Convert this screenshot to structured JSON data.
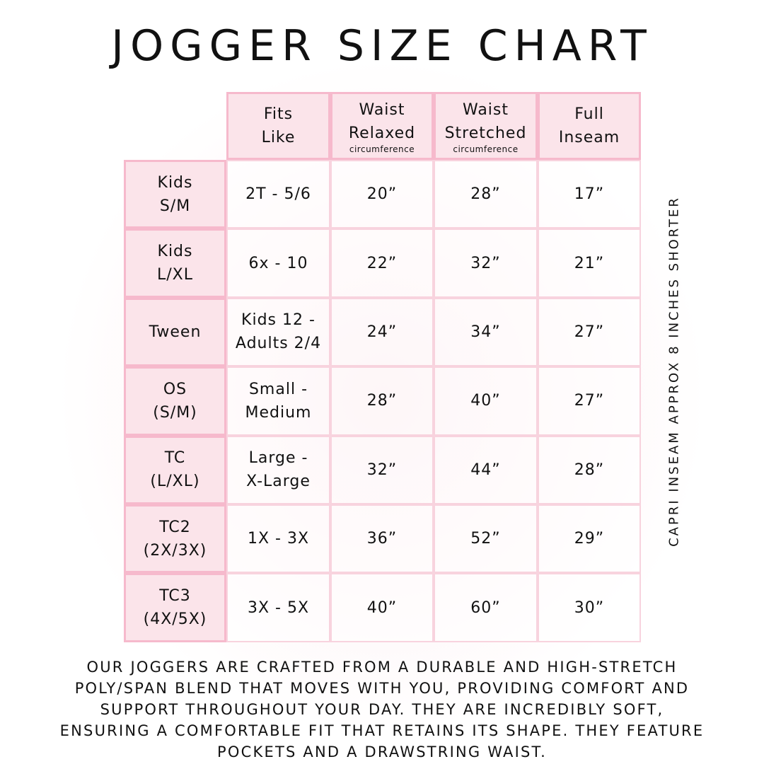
{
  "title": "JOGGER SIZE CHART",
  "table": {
    "header": [
      {
        "text": "Fits\nLike"
      },
      {
        "text": "Waist\nRelaxed",
        "note": "circumference"
      },
      {
        "text": "Waist\nStretched",
        "note": "circumference"
      },
      {
        "text": "Full\nInseam"
      }
    ],
    "rows": [
      [
        "Kids\nS/M",
        "2T - 5/6",
        "20”",
        "28”",
        "17”"
      ],
      [
        "Kids\nL/XL",
        "6x - 10",
        "22”",
        "32”",
        "21”"
      ],
      [
        "Tween",
        "Kids 12 -\nAdults 2/4",
        "24”",
        "34”",
        "27”"
      ],
      [
        "OS\n(S/M)",
        "Small -\nMedium",
        "28”",
        "40”",
        "27”"
      ],
      [
        "TC\n(L/XL)",
        "Large -\nX-Large",
        "32”",
        "44”",
        "28”"
      ],
      [
        "TC2\n(2X/3X)",
        "1X - 3X",
        "36”",
        "52”",
        "29”"
      ],
      [
        "TC3\n(4X/5X)",
        "3X - 5X",
        "40”",
        "60”",
        "30”"
      ]
    ]
  },
  "side_note": "CAPRI INSEAM APPROX 8 INCHES SHORTER",
  "footer": "OUR JOGGERS ARE CRAFTED FROM A DURABLE AND HIGH-STRETCH\nPOLY/SPAN BLEND THAT MOVES WITH YOU, PROVIDING COMFORT AND\nSUPPORT THROUGHOUT YOUR DAY. THEY ARE INCREDIBLY SOFT,\nENSURING A COMFORTABLE FIT THAT RETAINS ITS SHAPE. THEY FEATURE\nPOCKETS AND A DRAWSTRING WAIST."
}
